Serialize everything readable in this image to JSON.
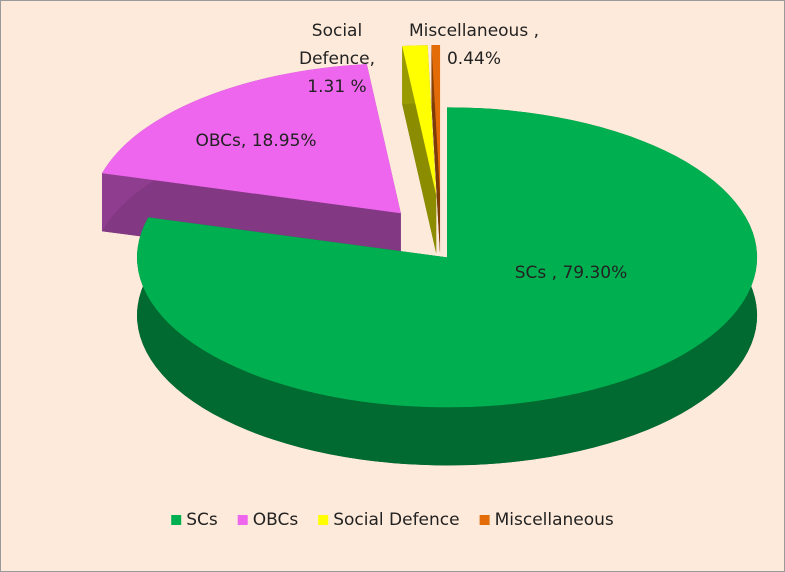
{
  "chart_data": {
    "type": "pie",
    "categories": [
      "SCs",
      "OBCs",
      "Social Defence",
      "Miscellaneous"
    ],
    "values": [
      79.3,
      18.95,
      1.31,
      0.44
    ],
    "value_labels": [
      "SCs , 79.30%",
      "OBCs, 18.95%",
      "Social Defence, 1.31 %",
      "Miscellaneous , 0.44%"
    ],
    "colors": [
      "#00b050",
      "#ee66ee",
      "#ffff00",
      "#e36c09"
    ],
    "three_d": true,
    "legend": "bottom"
  }
}
